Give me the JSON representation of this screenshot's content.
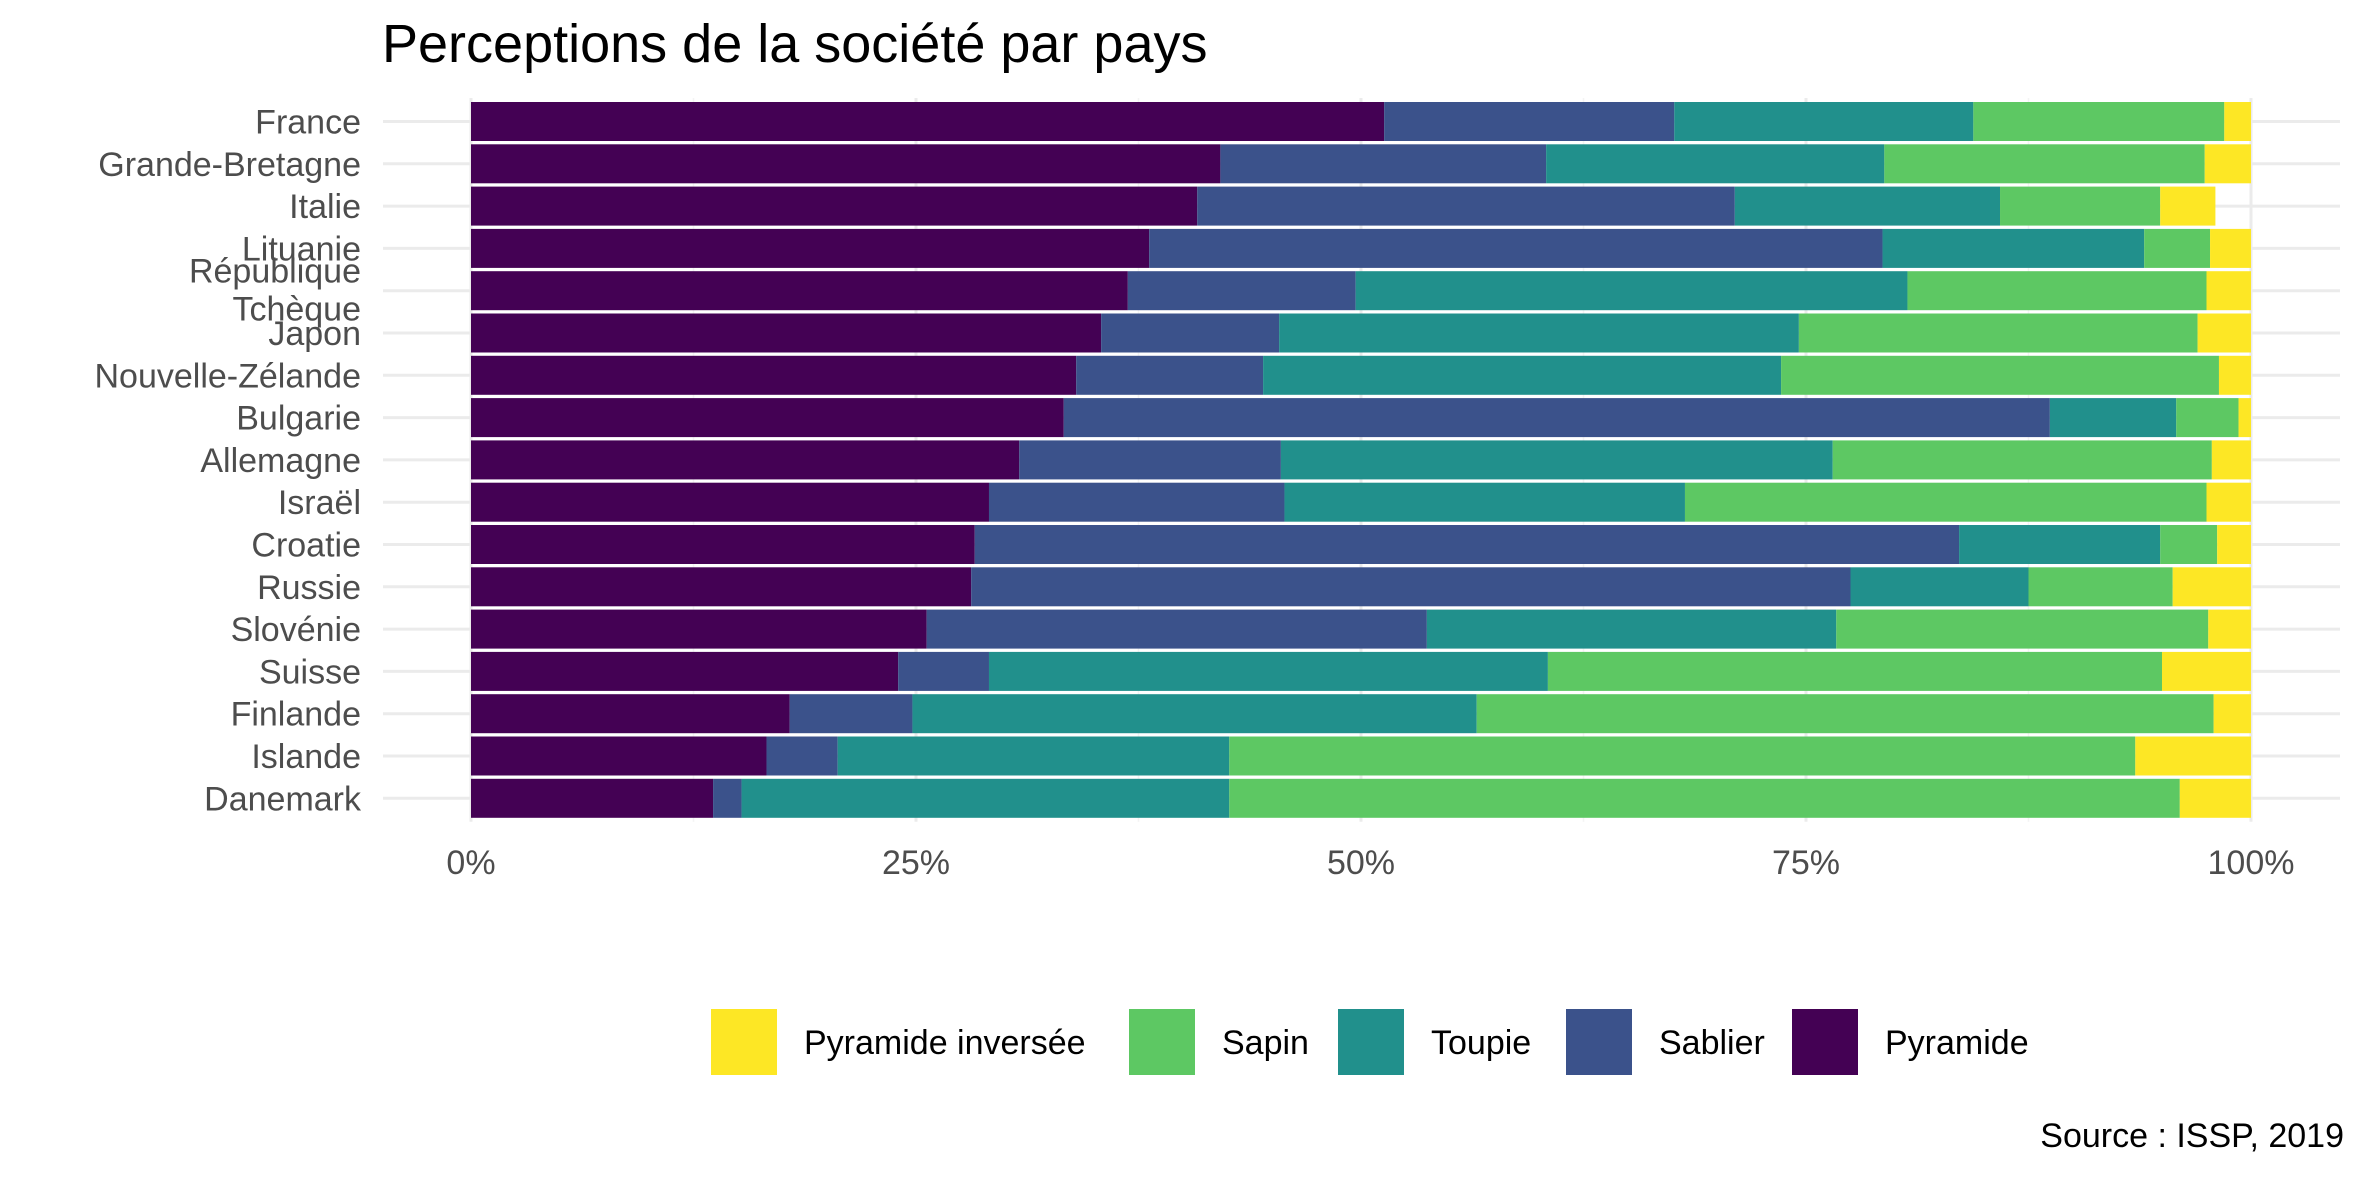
{
  "chart_data": {
    "type": "bar",
    "orientation": "horizontal",
    "stacked": "percent",
    "title": "Perceptions de la société par pays",
    "caption": "Source : ISSP, 2019",
    "xlabel": "",
    "ylabel": "",
    "xlim": [
      0,
      100
    ],
    "x_ticks": [
      "0%",
      "25%",
      "50%",
      "75%",
      "100%"
    ],
    "x_tick_values": [
      0,
      25,
      50,
      75,
      100
    ],
    "grid": true,
    "legend_position": "bottom",
    "categories": [
      "France",
      "Grande-Bretagne",
      "Italie",
      "Lituanie",
      "République Tchèque",
      "Japon",
      "Nouvelle-Zélande",
      "Bulgarie",
      "Allemagne",
      "Israël",
      "Croatie",
      "Russie",
      "Slovénie",
      "Suisse",
      "Finlande",
      "Islande",
      "Danemark"
    ],
    "series": [
      {
        "name": "Pyramide",
        "color": "#440154",
        "values": [
          51.3,
          42.1,
          40.8,
          38.1,
          36.9,
          35.4,
          34.0,
          33.3,
          30.8,
          29.1,
          28.3,
          28.1,
          25.6,
          24.0,
          17.9,
          16.6,
          13.6
        ]
      },
      {
        "name": "Sablier",
        "color": "#3b528b",
        "values": [
          16.3,
          18.3,
          30.2,
          41.2,
          12.8,
          10.0,
          10.5,
          55.4,
          14.7,
          16.6,
          55.3,
          49.4,
          28.1,
          5.1,
          6.9,
          4.0,
          1.6
        ]
      },
      {
        "name": "Toupie",
        "color": "#21908c",
        "values": [
          16.8,
          19.0,
          14.9,
          14.7,
          31.0,
          29.2,
          29.1,
          7.1,
          31.0,
          22.5,
          11.3,
          10.0,
          23.0,
          31.4,
          31.7,
          22.0,
          27.4
        ]
      },
      {
        "name": "Sapin",
        "color": "#5dc863",
        "values": [
          14.1,
          18.0,
          9.0,
          3.7,
          16.8,
          22.4,
          24.6,
          3.5,
          21.3,
          29.3,
          3.2,
          8.1,
          20.9,
          34.5,
          41.4,
          50.9,
          53.4
        ]
      },
      {
        "name": "Pyramide inversée",
        "color": "#fde725",
        "values": [
          1.5,
          2.6,
          3.1,
          2.3,
          2.5,
          3.0,
          1.8,
          0.7,
          2.2,
          2.5,
          1.9,
          4.4,
          2.4,
          5.0,
          2.1,
          6.5,
          4.0
        ]
      }
    ],
    "legend_order": [
      "Pyramide inversée",
      "Sapin",
      "Toupie",
      "Sablier",
      "Pyramide"
    ]
  }
}
